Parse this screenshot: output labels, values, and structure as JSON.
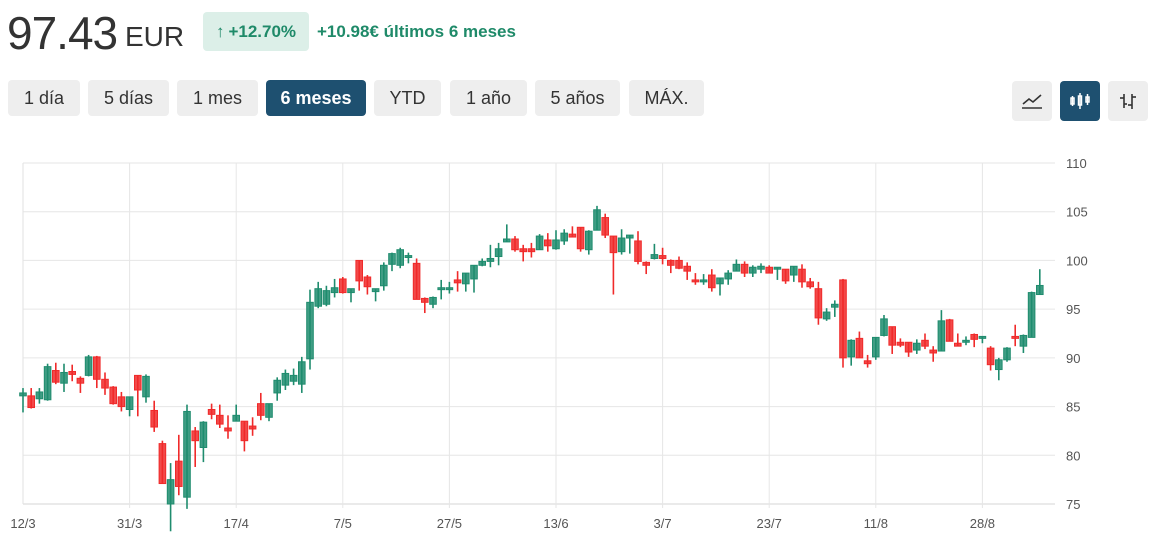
{
  "header": {
    "price": "97.43",
    "currency": "EUR",
    "change_pct": "+12.70%",
    "change_icon": "arrow-up-icon",
    "change_text": "+10.98€ últimos 6 meses"
  },
  "ranges": [
    {
      "label": "1 día",
      "active": false
    },
    {
      "label": "5 días",
      "active": false
    },
    {
      "label": "1 mes",
      "active": false
    },
    {
      "label": "6 meses",
      "active": true
    },
    {
      "label": "YTD",
      "active": false
    },
    {
      "label": "1 año",
      "active": false
    },
    {
      "label": "5 años",
      "active": false
    },
    {
      "label": "MÁX.",
      "active": false
    }
  ],
  "chart_types": [
    {
      "icon": "line-chart-icon",
      "active": false
    },
    {
      "icon": "candlestick-chart-icon",
      "active": true
    },
    {
      "icon": "ohlc-bar-chart-icon",
      "active": false
    }
  ],
  "colors": {
    "up": "#1f8c6e",
    "down": "#f02a2a",
    "accent": "#1e5070",
    "positive_text": "#1f8a69"
  },
  "chart_data": {
    "type": "candlestick",
    "ylim": [
      75,
      110
    ],
    "yticks": [
      75,
      80,
      85,
      90,
      95,
      100,
      105,
      110
    ],
    "y_axis_position": "right",
    "grid": true,
    "xticks": [
      {
        "label": "12/3",
        "index": 0
      },
      {
        "label": "31/3",
        "index": 13
      },
      {
        "label": "17/4",
        "index": 26
      },
      {
        "label": "7/5",
        "index": 39
      },
      {
        "label": "27/5",
        "index": 52
      },
      {
        "label": "13/6",
        "index": 65
      },
      {
        "label": "3/7",
        "index": 78
      },
      {
        "label": "23/7",
        "index": 91
      },
      {
        "label": "11/8",
        "index": 104
      },
      {
        "label": "28/8",
        "index": 117
      }
    ],
    "ohlc_fields": [
      "open",
      "high",
      "low",
      "close"
    ],
    "ohlc": [
      [
        86.1,
        86.9,
        84.4,
        86.4
      ],
      [
        86.1,
        86.9,
        84.8,
        84.9
      ],
      [
        85.8,
        86.9,
        85.3,
        86.5
      ],
      [
        85.7,
        89.4,
        85.6,
        89.1
      ],
      [
        88.7,
        89.5,
        87.3,
        87.5
      ],
      [
        87.4,
        89.4,
        86.5,
        88.5
      ],
      [
        88.6,
        89.3,
        87.6,
        88.3
      ],
      [
        87.9,
        88.1,
        86.4,
        87.4
      ],
      [
        88.2,
        90.3,
        88.1,
        90.1
      ],
      [
        90.1,
        90.2,
        86.9,
        87.8
      ],
      [
        87.8,
        88.5,
        86.2,
        86.9
      ],
      [
        87.0,
        87.1,
        85.2,
        85.3
      ],
      [
        86.0,
        86.5,
        84.5,
        85.0
      ],
      [
        84.7,
        86.0,
        84.0,
        86.0
      ],
      [
        88.2,
        88.2,
        84.0,
        86.7
      ],
      [
        86.0,
        88.3,
        85.4,
        88.1
      ],
      [
        84.6,
        85.6,
        82.4,
        82.9
      ],
      [
        81.2,
        81.5,
        77.1,
        77.1
      ],
      [
        75.0,
        79.2,
        72.2,
        77.5
      ],
      [
        79.4,
        82.1,
        75.9,
        76.8
      ],
      [
        75.7,
        85.2,
        74.5,
        84.5
      ],
      [
        82.5,
        82.9,
        78.8,
        81.5
      ],
      [
        80.8,
        83.5,
        79.3,
        83.4
      ],
      [
        84.7,
        85.3,
        83.7,
        84.2
      ],
      [
        84.1,
        85.2,
        82.8,
        83.2
      ],
      [
        82.8,
        84.1,
        81.7,
        82.5
      ],
      [
        83.5,
        85.2,
        83.5,
        84.1
      ],
      [
        83.5,
        83.5,
        80.4,
        81.5
      ],
      [
        83.0,
        83.9,
        82.0,
        82.7
      ],
      [
        85.3,
        86.4,
        83.6,
        84.1
      ],
      [
        83.9,
        85.3,
        83.5,
        85.3
      ],
      [
        86.4,
        88.0,
        85.6,
        87.7
      ],
      [
        87.2,
        88.8,
        86.7,
        88.4
      ],
      [
        87.6,
        88.9,
        87.2,
        88.2
      ],
      [
        87.3,
        90.1,
        86.4,
        89.6
      ],
      [
        89.9,
        97.0,
        88.8,
        95.7
      ],
      [
        95.3,
        97.8,
        95.1,
        97.1
      ],
      [
        95.5,
        97.4,
        95.3,
        96.9
      ],
      [
        96.7,
        98.1,
        96.2,
        97.2
      ],
      [
        98.1,
        98.3,
        96.6,
        96.7
      ],
      [
        96.7,
        97.1,
        95.7,
        97.1
      ],
      [
        100.0,
        100.0,
        96.9,
        97.9
      ],
      [
        98.3,
        98.5,
        96.5,
        97.3
      ],
      [
        96.8,
        97.1,
        95.8,
        97.1
      ],
      [
        97.4,
        99.8,
        96.9,
        99.5
      ],
      [
        99.6,
        100.8,
        98.9,
        100.7
      ],
      [
        99.5,
        101.3,
        99.2,
        101.1
      ],
      [
        100.3,
        100.8,
        99.7,
        100.5
      ],
      [
        99.7,
        100.2,
        96.0,
        96.0
      ],
      [
        96.1,
        96.2,
        94.6,
        95.7
      ],
      [
        95.5,
        96.3,
        95.1,
        96.2
      ],
      [
        97.0,
        98.0,
        96.0,
        97.2
      ],
      [
        97.0,
        97.8,
        96.6,
        97.2
      ],
      [
        98.0,
        98.9,
        96.8,
        97.7
      ],
      [
        97.6,
        98.7,
        96.8,
        98.7
      ],
      [
        98.1,
        99.5,
        96.7,
        99.5
      ],
      [
        99.5,
        100.2,
        99.4,
        99.9
      ],
      [
        99.9,
        101.6,
        99.3,
        100.2
      ],
      [
        100.4,
        101.8,
        99.5,
        101.2
      ],
      [
        101.9,
        103.7,
        101.9,
        102.2
      ],
      [
        102.2,
        102.5,
        100.9,
        101.1
      ],
      [
        101.2,
        101.6,
        99.9,
        100.9
      ],
      [
        101.2,
        101.8,
        100.3,
        100.9
      ],
      [
        101.1,
        102.7,
        101.1,
        102.5
      ],
      [
        102.1,
        102.8,
        100.9,
        101.5
      ],
      [
        101.2,
        103.1,
        101.1,
        102.1
      ],
      [
        102.0,
        103.2,
        101.6,
        102.8
      ],
      [
        102.7,
        103.5,
        102.4,
        102.4
      ],
      [
        103.4,
        103.4,
        100.9,
        101.2
      ],
      [
        101.1,
        103.1,
        100.6,
        103.0
      ],
      [
        103.1,
        105.6,
        103.1,
        105.2
      ],
      [
        104.4,
        104.8,
        102.3,
        102.6
      ],
      [
        102.5,
        102.5,
        96.5,
        100.8
      ],
      [
        100.9,
        103.2,
        100.6,
        102.3
      ],
      [
        102.3,
        102.6,
        100.7,
        102.6
      ],
      [
        102.0,
        103.0,
        99.6,
        99.9
      ],
      [
        99.8,
        99.9,
        98.6,
        99.5
      ],
      [
        100.2,
        101.7,
        100.1,
        100.6
      ],
      [
        100.5,
        101.3,
        99.6,
        100.2
      ],
      [
        100.0,
        100.1,
        98.7,
        99.5
      ],
      [
        100.0,
        100.4,
        99.1,
        99.2
      ],
      [
        99.4,
        99.8,
        98.0,
        98.9
      ],
      [
        98.0,
        98.7,
        97.5,
        97.8
      ],
      [
        97.8,
        98.6,
        97.5,
        98.0
      ],
      [
        98.5,
        99.1,
        96.8,
        97.2
      ],
      [
        97.6,
        98.2,
        96.4,
        98.2
      ],
      [
        98.1,
        99.0,
        97.5,
        98.7
      ],
      [
        98.9,
        100.1,
        98.9,
        99.6
      ],
      [
        99.6,
        99.9,
        98.3,
        98.7
      ],
      [
        98.7,
        99.5,
        98.3,
        99.3
      ],
      [
        99.1,
        99.7,
        98.7,
        99.4
      ],
      [
        99.3,
        99.5,
        98.7,
        98.7
      ],
      [
        99.1,
        99.3,
        98.0,
        99.3
      ],
      [
        99.1,
        99.1,
        97.6,
        97.9
      ],
      [
        98.5,
        99.4,
        97.8,
        99.4
      ],
      [
        99.1,
        99.6,
        97.2,
        97.8
      ],
      [
        97.8,
        98.2,
        97.1,
        97.3
      ],
      [
        97.1,
        97.8,
        93.4,
        94.1
      ],
      [
        94.0,
        95.1,
        93.8,
        94.7
      ],
      [
        95.2,
        95.9,
        94.2,
        95.5
      ],
      [
        98.0,
        98.1,
        89.0,
        90.0
      ],
      [
        90.1,
        91.9,
        89.2,
        91.8
      ],
      [
        92.0,
        92.7,
        90.0,
        90.0
      ],
      [
        89.7,
        90.3,
        89.0,
        89.4
      ],
      [
        90.1,
        92.1,
        89.8,
        92.1
      ],
      [
        92.3,
        94.4,
        92.2,
        94.0
      ],
      [
        93.2,
        93.2,
        90.4,
        91.3
      ],
      [
        91.6,
        92.0,
        91.1,
        91.3
      ],
      [
        91.6,
        91.6,
        90.1,
        90.6
      ],
      [
        90.8,
        91.9,
        90.4,
        91.5
      ],
      [
        91.8,
        92.5,
        90.9,
        91.2
      ],
      [
        90.8,
        91.2,
        89.6,
        90.5
      ],
      [
        90.7,
        94.9,
        90.7,
        93.8
      ],
      [
        93.9,
        94.0,
        91.7,
        91.7
      ],
      [
        91.5,
        92.5,
        91.2,
        91.2
      ],
      [
        91.6,
        92.2,
        91.3,
        91.8
      ],
      [
        92.4,
        92.5,
        91.1,
        91.9
      ],
      [
        92.0,
        92.2,
        91.5,
        92.2
      ],
      [
        91.0,
        91.2,
        88.7,
        89.3
      ],
      [
        88.8,
        90.0,
        87.7,
        89.8
      ],
      [
        89.8,
        91.1,
        89.6,
        91.0
      ],
      [
        92.2,
        93.4,
        91.2,
        92.0
      ],
      [
        91.2,
        92.4,
        90.5,
        92.3
      ],
      [
        92.1,
        96.8,
        92.1,
        96.7
      ],
      [
        96.5,
        99.1,
        96.5,
        97.43
      ]
    ]
  }
}
